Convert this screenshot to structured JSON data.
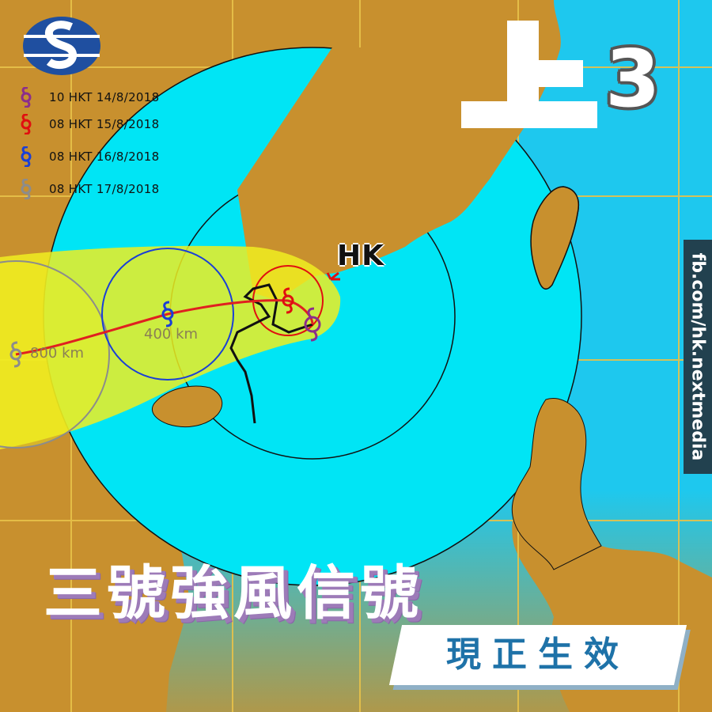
{
  "legend": [
    {
      "label": "10 HKT 14/8/2018",
      "color": "#8b2e8b"
    },
    {
      "label": "08 HKT 15/8/2018",
      "color": "#e01010"
    },
    {
      "label": "08 HKT 16/8/2018",
      "color": "#1a3fd6"
    },
    {
      "label": "08 HKT 17/8/2018",
      "color": "#8c8c8c"
    }
  ],
  "badge": {
    "char": "上",
    "number": "3"
  },
  "map": {
    "place_label": "HK",
    "distance_labels": [
      "400 km",
      "800 km"
    ],
    "colors": {
      "land": "#c8902e",
      "sea": "#00e5f5",
      "sea_far": "#1ec8ee",
      "forecast_cone": "#f0ee20",
      "track": "#e02020",
      "grid": "#e8c24a"
    }
  },
  "side_credit": "fb.com/hk.nextmedia",
  "headline": "三號強風信號",
  "subheadline": "現正生效",
  "icons": [
    "observatory-logo",
    "typhoon-symbol"
  ]
}
